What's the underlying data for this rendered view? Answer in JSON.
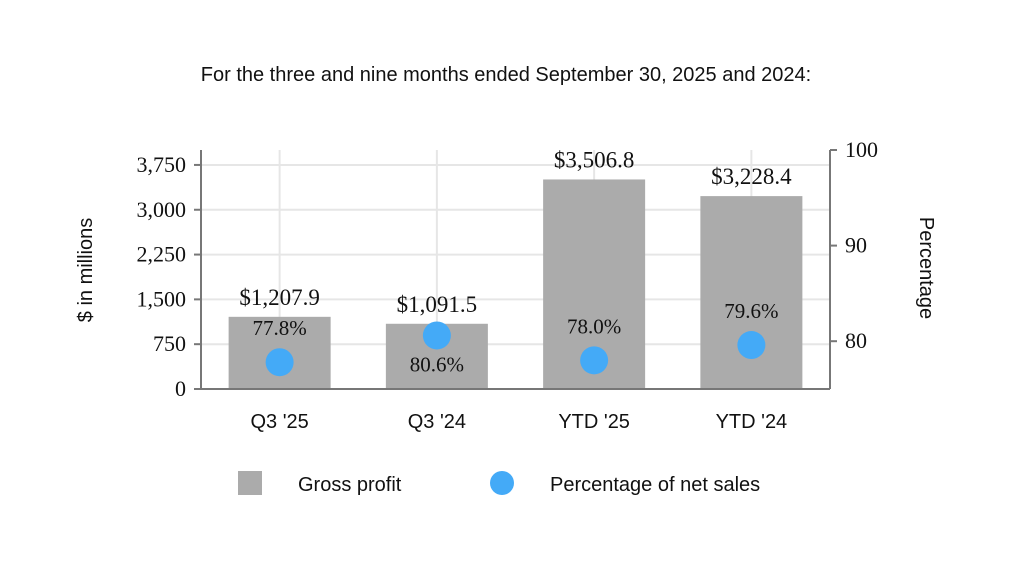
{
  "chart_data": {
    "type": "bar",
    "title": "For the three and nine months ended September 30, 2025 and 2024:",
    "categories": [
      "Q3 '25",
      "Q3 '24",
      "YTD '25",
      "YTD '24"
    ],
    "series": [
      {
        "name": "Gross profit",
        "axis": "left",
        "kind": "bar",
        "values": [
          1207.9,
          1091.5,
          3506.8,
          3228.4
        ],
        "labels": [
          "$1,207.9",
          "$1,091.5",
          "$3,506.8",
          "$3,228.4"
        ],
        "color": "#ababab"
      },
      {
        "name": "Percentage of net sales",
        "axis": "right",
        "kind": "scatter",
        "values": [
          77.8,
          80.6,
          78.0,
          79.6
        ],
        "labels": [
          "77.8%",
          "80.6%",
          "78.0%",
          "79.6%"
        ],
        "color": "#44aaf7"
      }
    ],
    "ylabel": "$ in millions",
    "ylim": [
      0,
      4000
    ],
    "yticks": [
      0,
      750,
      1500,
      2250,
      3000,
      3750
    ],
    "ytick_labels": [
      "0",
      "750",
      "1,500",
      "2,250",
      "3,000",
      "3,750"
    ],
    "y2label": "Percentage",
    "y2lim": [
      75,
      100
    ],
    "y2ticks": [
      80,
      90,
      100
    ],
    "y2tick_labels": [
      "80",
      "90",
      "100"
    ],
    "grid": true,
    "legend": "bottom"
  }
}
